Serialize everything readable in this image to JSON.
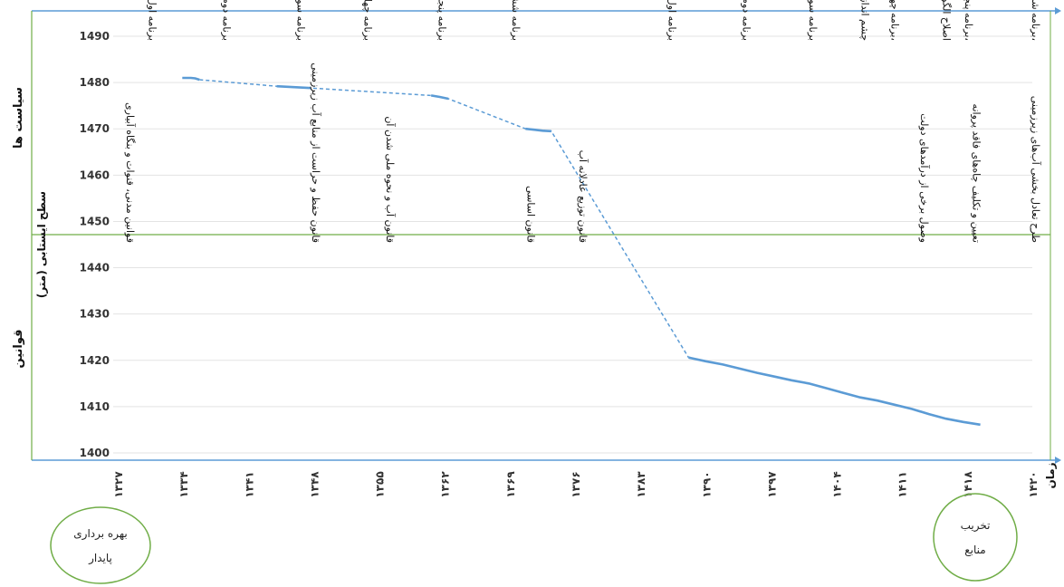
{
  "chart_data": {
    "type": "line",
    "ylabel": "سطح ایستابی (متر)",
    "xlabel": "زمان",
    "ylim": [
      1400,
      1490
    ],
    "yticks": [
      1400,
      1410,
      1420,
      1430,
      1440,
      1450,
      1460,
      1470,
      1480,
      1490
    ],
    "xtick_labels": [
      "۱۳۲۷",
      "۱۳۳۴",
      "۱۳۴۱",
      "۱۳۴۸",
      "۱۳۵۵",
      "۱۳۶۲",
      "۱۳۶۹",
      "۱۳۷۶",
      "۱۳۸۳",
      "۱۳۹۰",
      "۱۳۹۷",
      "۱۴۰۴",
      "۱۴۱۱",
      "۱۴۱۸",
      "۱۴۲۰"
    ],
    "xlim": [
      1320,
      1425
    ],
    "series": [
      {
        "style": "solid",
        "x": [
          1327,
          1328,
          1328.5,
          1329
        ],
        "y": [
          1481,
          1481,
          1480.9,
          1480.6
        ]
      },
      {
        "style": "solid",
        "x": [
          1338,
          1340,
          1342
        ],
        "y": [
          1479.2,
          1479,
          1478.8
        ]
      },
      {
        "style": "solid",
        "x": [
          1356,
          1357,
          1358
        ],
        "y": [
          1477.2,
          1476.9,
          1476.5
        ]
      },
      {
        "style": "solid",
        "x": [
          1367,
          1368,
          1369,
          1370
        ],
        "y": [
          1470,
          1469.8,
          1469.6,
          1469.5
        ]
      },
      {
        "style": "solid",
        "x": [
          1386,
          1388,
          1390,
          1392,
          1394,
          1396,
          1398,
          1400,
          1402,
          1404,
          1406,
          1408,
          1410,
          1412,
          1414,
          1416,
          1418,
          1420
        ],
        "y": [
          1420.6,
          1419.8,
          1419.1,
          1418.2,
          1417.3,
          1416.5,
          1415.7,
          1415,
          1414,
          1413,
          1412,
          1411.3,
          1410.4,
          1409.5,
          1408.4,
          1407.4,
          1406.7,
          1406.1
        ]
      },
      {
        "style": "dashed",
        "x": [
          1329,
          1338,
          1342,
          1356,
          1358,
          1367,
          1370,
          1386
        ],
        "y": [
          1480.6,
          1479.2,
          1478.8,
          1477.2,
          1476.5,
          1470,
          1469.5,
          1420.6
        ]
      }
    ],
    "color": "#5b9bd5",
    "sections": [
      {
        "name": "سیاست ها",
        "y_from": 1447.5,
        "y_to": 1492
      },
      {
        "name": "قوانین",
        "y_from": 1400,
        "y_to": 1447.5
      }
    ],
    "policy_labels": [
      {
        "x": 1328,
        "text": "برنامه اول عمرانی"
      },
      {
        "x": 1338,
        "text": "برنامه دوم عمرانی"
      },
      {
        "x": 1348,
        "text": "برنامه سوم عمرانی"
      },
      {
        "x": 1357,
        "text": "برنامه چهارم عمرانی"
      },
      {
        "x": 1367,
        "text": "برنامه پنجم عمرانی"
      },
      {
        "x": 1377,
        "text": "برنامه ششم عمرانی"
      },
      {
        "x": 1398,
        "text": "برنامه اول توسعه"
      },
      {
        "x": 1408,
        "text": "برنامه دوم توسعه"
      },
      {
        "x": 1417,
        "text": "برنامه سوم توسعه"
      },
      {
        "x": 1424,
        "text": "چشم انداز افق ۱۴۰۴"
      },
      {
        "x": 1428,
        "text": "برنامه چهارم توسعه،"
      },
      {
        "x": 1435,
        "text": "اصلاح الگوی مصرف"
      },
      {
        "x": 1438,
        "text": "برنامه پنجم توسعه،"
      },
      {
        "x": 1447,
        "text": "برنامه ششم توسعه،"
      }
    ],
    "law_labels": [
      {
        "x": 1325,
        "text": "قوانین مدنی، قنوات و بنگاه آبیاری"
      },
      {
        "x": 1350,
        "text": "قانون حفظ و حراست از منابع آب زیرزمینی"
      },
      {
        "x": 1360,
        "text": "قانون آب و نحوه ملی شدن آن"
      },
      {
        "x": 1379,
        "text": "قانون اساسی"
      },
      {
        "x": 1386,
        "text": "قانون توزیع عادلانه آب"
      },
      {
        "x": 1432,
        "text": "وصول برخی از درآمدهای دولت"
      },
      {
        "x": 1439,
        "text": "تعیین و تکلیف چاه‌های فاقد پروانه"
      },
      {
        "x": 1447,
        "text": "طرح تعادل بخشی آب‌های زیرزمینی"
      }
    ]
  },
  "circles": {
    "left": [
      "بهره برداری",
      "پایدار"
    ],
    "right": [
      "تخریب",
      "منابع"
    ]
  }
}
